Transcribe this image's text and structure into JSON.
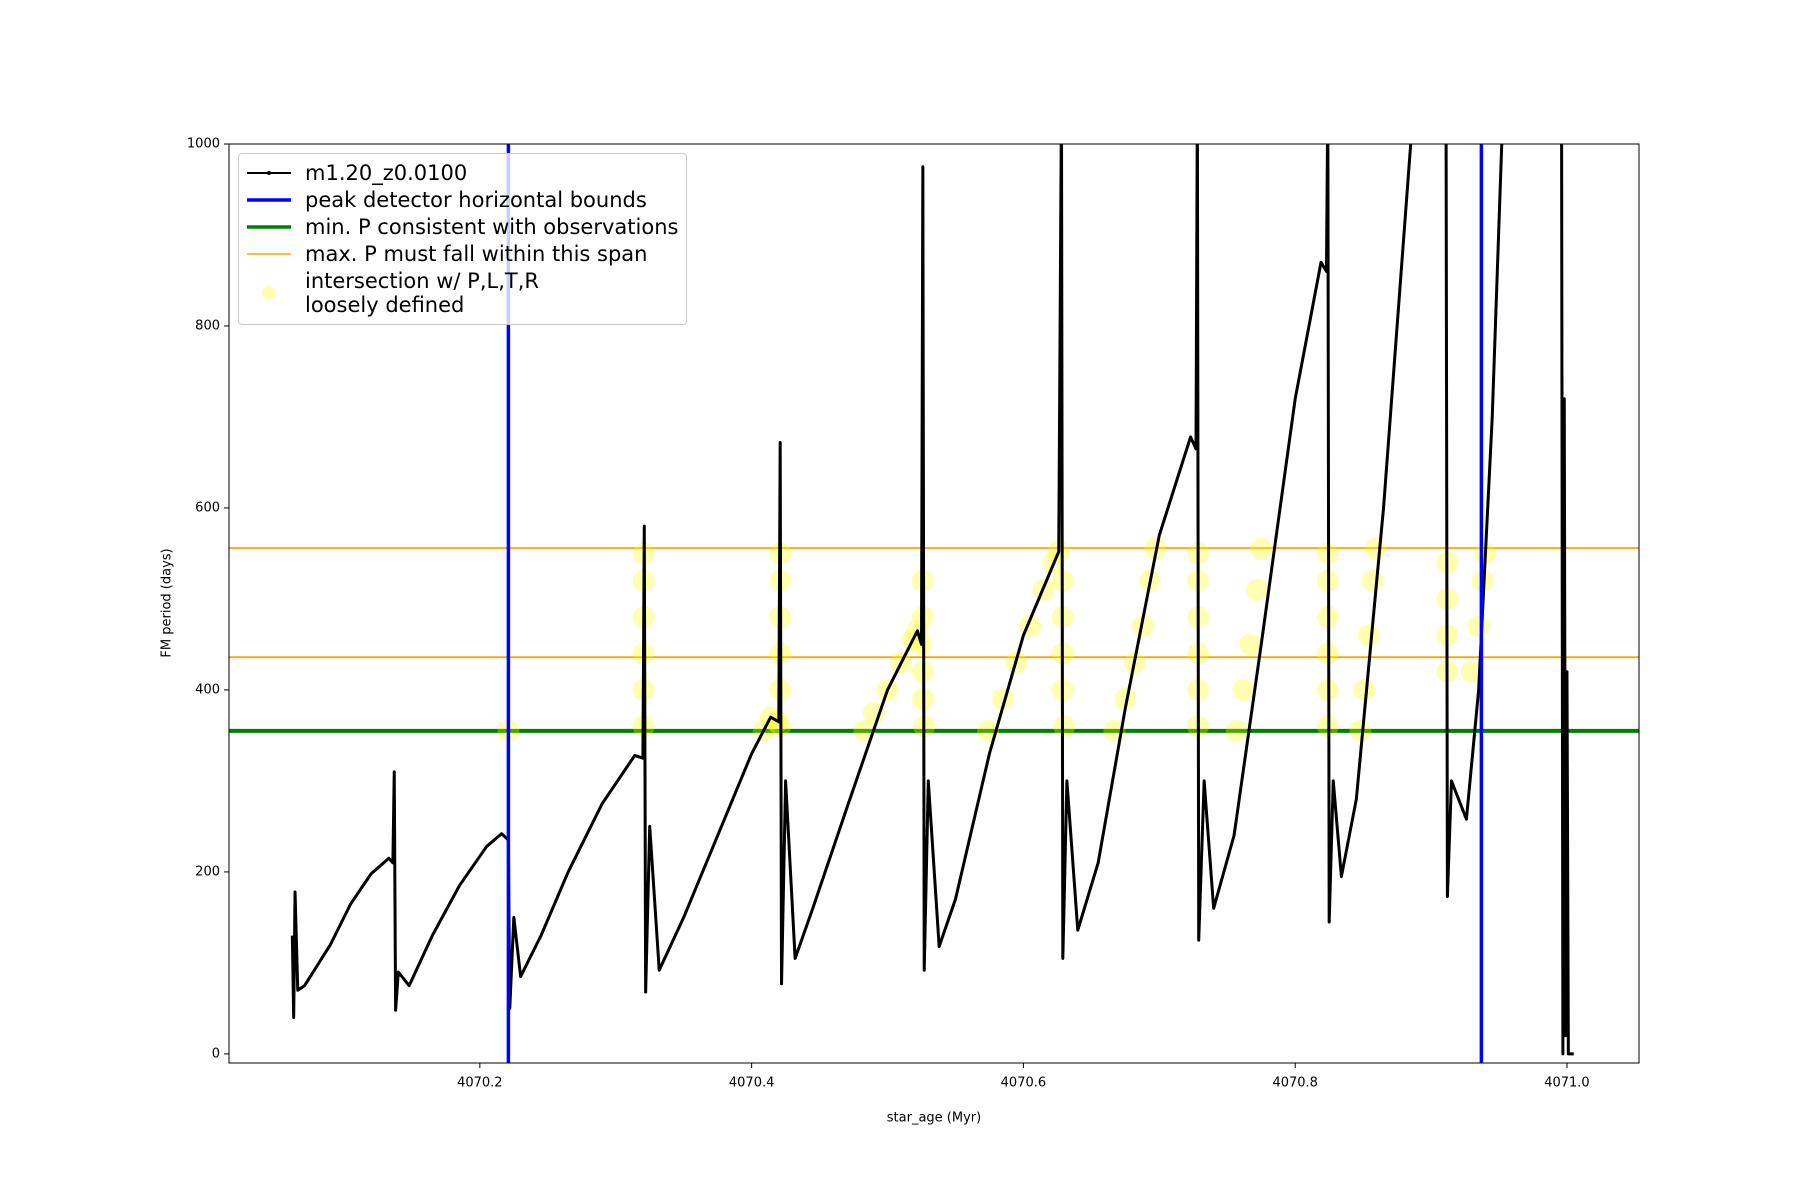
{
  "chart_data": {
    "type": "line",
    "xlabel": "star_age (Myr)",
    "ylabel": "FM period (days)",
    "xlim": [
      4070.0154,
      4071.053
    ],
    "ylim": [
      -10,
      1000
    ],
    "xticks": [
      4070.2,
      4070.4,
      4070.6,
      4070.8,
      {
        "value": 4071,
        "label": "4071.0"
      }
    ],
    "yticks": [
      0,
      200,
      400,
      600,
      800,
      1000
    ],
    "legend": "upper left",
    "series": [
      {
        "name": "m1.20_z0.0100",
        "color": "#000000",
        "type": "line",
        "x": [
          4070.062,
          4070.063,
          4070.064,
          4070.066,
          4070.071,
          4070.09,
          4070.105,
          4070.12,
          4070.133,
          4070.136,
          4070.137,
          4070.138,
          4070.14,
          4070.148,
          4070.165,
          4070.185,
          4070.205,
          4070.216,
          4070.221,
          4070.222,
          4070.225,
          4070.23,
          4070.245,
          4070.265,
          4070.29,
          4070.314,
          4070.32,
          4070.321,
          4070.322,
          4070.325,
          4070.332,
          4070.35,
          4070.375,
          4070.4,
          4070.414,
          4070.42,
          4070.421,
          4070.422,
          4070.425,
          4070.432,
          4070.445,
          4070.47,
          4070.5,
          4070.522,
          4070.525,
          4070.526,
          4070.527,
          4070.53,
          4070.538,
          4070.55,
          4070.575,
          4070.6,
          4070.626,
          4070.628,
          4070.629,
          4070.632,
          4070.64,
          4070.655,
          4070.675,
          4070.7,
          4070.723,
          4070.727,
          4070.728,
          4070.729,
          4070.733,
          4070.74,
          4070.755,
          4070.775,
          4070.8,
          4070.819,
          4070.823,
          4070.824,
          4070.825,
          4070.828,
          4070.834,
          4070.845,
          4070.865,
          4070.885,
          4070.89,
          4070.911,
          4070.912,
          4070.915,
          4070.926,
          4070.935,
          4070.945,
          4070.952,
          4070.955,
          4070.996,
          4070.997,
          4070.998,
          4070.999,
          4071.0,
          4071.001,
          4071.005
        ],
        "values": [
          130,
          40,
          178,
          70,
          75,
          120,
          165,
          198,
          215,
          210,
          310,
          48,
          90,
          75,
          130,
          185,
          228,
          242,
          235,
          50,
          150,
          85,
          130,
          200,
          275,
          328,
          325,
          580,
          68,
          250,
          92,
          150,
          240,
          330,
          370,
          365,
          672,
          77,
          300,
          105,
          160,
          270,
          400,
          465,
          450,
          975,
          92,
          300,
          118,
          170,
          330,
          460,
          552,
          1050,
          105,
          300,
          136,
          210,
          380,
          570,
          678,
          665,
          1050,
          125,
          300,
          160,
          240,
          450,
          720,
          870,
          860,
          1050,
          145,
          300,
          195,
          280,
          600,
          1000,
          1050,
          1050,
          173,
          300,
          258,
          400,
          700,
          1000,
          1050,
          1050,
          0,
          720,
          20,
          420,
          0,
          0
        ]
      },
      {
        "name": "peak detector horizontal bounds",
        "color": "#0000ff",
        "type": "vline",
        "x": [
          4070.221,
          4070.937
        ]
      },
      {
        "name": "min. P consistent with observations",
        "color": "#008000",
        "type": "hline",
        "values": [
          355
        ]
      },
      {
        "name": "max. P must fall within this span",
        "color": "#ffa500",
        "type": "hline",
        "values": [
          556,
          436
        ]
      },
      {
        "name": "intersection w/ P,L,T,R\nloosely defined",
        "color": "#ffff00",
        "type": "scatter",
        "alpha": 0.3,
        "x": [
          4070.221,
          4070.3205,
          4070.3205,
          4070.3205,
          4070.3205,
          4070.3205,
          4070.3205,
          4070.409,
          4070.414,
          4070.419,
          4070.421,
          4070.421,
          4070.421,
          4070.421,
          4070.421,
          4070.421,
          4070.483,
          4070.49,
          4070.5,
          4070.51,
          4070.518,
          4070.522,
          4070.525,
          4070.526,
          4070.526,
          4070.527,
          4070.526,
          4070.526,
          4070.574,
          4070.585,
          4070.595,
          4070.605,
          4070.615,
          4070.622,
          4070.626,
          4070.629,
          4070.629,
          4070.629,
          4070.629,
          4070.63,
          4070.667,
          4070.675,
          4070.682,
          4070.688,
          4070.693,
          4070.697,
          4070.7285,
          4070.7285,
          4070.7285,
          4070.7285,
          4070.7285,
          4070.7285,
          4070.757,
          4070.762,
          4070.767,
          4070.772,
          4070.775,
          4070.824,
          4070.824,
          4070.824,
          4070.824,
          4070.824,
          4070.824,
          4070.848,
          4070.851,
          4070.854,
          4070.857,
          4070.859,
          4070.912,
          4070.912,
          4070.912,
          4070.912,
          4070.93,
          4070.935,
          4070.938,
          4070.94
        ],
        "values": [
          355,
          360,
          400,
          440,
          480,
          520,
          550,
          355,
          370,
          365,
          360,
          400,
          440,
          480,
          520,
          550,
          355,
          375,
          400,
          430,
          455,
          465,
          450,
          420,
          390,
          360,
          480,
          520,
          355,
          390,
          430,
          470,
          510,
          540,
          552,
          520,
          480,
          440,
          400,
          360,
          355,
          390,
          430,
          470,
          520,
          555,
          360,
          400,
          440,
          480,
          520,
          550,
          355,
          400,
          450,
          510,
          555,
          360,
          400,
          440,
          480,
          520,
          550,
          355,
          400,
          460,
          520,
          555,
          420,
          460,
          500,
          540,
          420,
          470,
          520,
          550
        ]
      }
    ]
  }
}
